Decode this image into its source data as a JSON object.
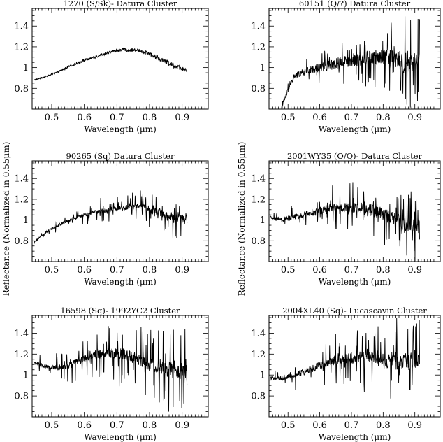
{
  "figure": {
    "ylabel": "Reflectance (Normalized in 0.55μm)"
  },
  "chart_data": [
    {
      "type": "line",
      "title": "1270 (S/Sk)- Datura Cluster",
      "xlabel": "Wavelength (μm)",
      "xlim": [
        0.44,
        0.98
      ],
      "ylim": [
        0.6,
        1.57
      ],
      "xticks": [
        "0.5",
        "0.6",
        "0.7",
        "0.8",
        "0.9"
      ],
      "yticks": [
        "0.8",
        "1",
        "1.2",
        "1.4"
      ],
      "series": [
        {
          "x": [
            0.445,
            0.48,
            0.52,
            0.56,
            0.6,
            0.64,
            0.68,
            0.72,
            0.76,
            0.8,
            0.84,
            0.88,
            0.915
          ],
          "y": [
            0.88,
            0.91,
            0.96,
            1.02,
            1.07,
            1.11,
            1.15,
            1.17,
            1.17,
            1.13,
            1.07,
            1.01,
            0.98
          ],
          "noise": 0.012,
          "spikes": 0.01,
          "floor": 0.0
        }
      ]
    },
    {
      "type": "line",
      "title": "60151 (Q/?) Datura Cluster",
      "xlabel": "Wavelength (μm)",
      "xlim": [
        0.44,
        0.98
      ],
      "ylim": [
        0.6,
        1.57
      ],
      "xticks": [
        "0.5",
        "0.6",
        "0.7",
        "0.8",
        "0.9"
      ],
      "yticks": [
        "0.8",
        "1",
        "1.2",
        "1.4"
      ],
      "series": [
        {
          "x": [
            0.48,
            0.5,
            0.52,
            0.56,
            0.6,
            0.64,
            0.68,
            0.72,
            0.76,
            0.8,
            0.84,
            0.88,
            0.915
          ],
          "y": [
            0.62,
            0.78,
            0.92,
            0.97,
            1.0,
            1.03,
            1.06,
            1.08,
            1.1,
            1.1,
            1.08,
            1.05,
            1.05
          ],
          "noise": 0.05,
          "spikes": 0.35,
          "floor": 0.6
        }
      ]
    },
    {
      "type": "line",
      "title": "90265 (Sq) Datura Cluster",
      "xlabel": "Wavelength (μm)",
      "xlim": [
        0.44,
        0.98
      ],
      "ylim": [
        0.6,
        1.57
      ],
      "xticks": [
        "0.5",
        "0.6",
        "0.7",
        "0.8",
        "0.9"
      ],
      "yticks": [
        "0.8",
        "1",
        "1.2",
        "1.4"
      ],
      "series": [
        {
          "x": [
            0.445,
            0.48,
            0.52,
            0.56,
            0.6,
            0.64,
            0.68,
            0.72,
            0.76,
            0.8,
            0.84,
            0.88,
            0.915
          ],
          "y": [
            0.78,
            0.88,
            0.95,
            1.01,
            1.05,
            1.08,
            1.1,
            1.12,
            1.13,
            1.11,
            1.06,
            1.02,
            1.0
          ],
          "noise": 0.02,
          "spikes": 0.18,
          "floor": 0.6
        }
      ]
    },
    {
      "type": "line",
      "title": "2001WY35 (O/Q)- Datura Cluster",
      "xlabel": "Wavelength (μm)",
      "xlim": [
        0.44,
        0.98
      ],
      "ylim": [
        0.6,
        1.57
      ],
      "xticks": [
        "0.5",
        "0.6",
        "0.7",
        "0.8",
        "0.9"
      ],
      "yticks": [
        "0.8",
        "1",
        "1.2",
        "1.4"
      ],
      "series": [
        {
          "x": [
            0.445,
            0.48,
            0.52,
            0.56,
            0.6,
            0.64,
            0.68,
            0.72,
            0.76,
            0.8,
            0.84,
            0.88,
            0.915
          ],
          "y": [
            1.02,
            1.0,
            1.03,
            1.06,
            1.09,
            1.12,
            1.12,
            1.12,
            1.1,
            1.06,
            1.0,
            0.95,
            0.93
          ],
          "noise": 0.04,
          "spikes": 0.3,
          "floor": 0.6
        }
      ]
    },
    {
      "type": "line",
      "title": "16598 (Sq)- 1992YC2 Cluster",
      "xlabel": "Wavelength (μm)",
      "xlim": [
        0.44,
        0.98
      ],
      "ylim": [
        0.6,
        1.57
      ],
      "xticks": [
        "0.5",
        "0.6",
        "0.7",
        "0.8",
        "0.9"
      ],
      "yticks": [
        "0.8",
        "1",
        "1.2",
        "1.4"
      ],
      "series": [
        {
          "x": [
            0.445,
            0.48,
            0.52,
            0.56,
            0.6,
            0.64,
            0.68,
            0.72,
            0.76,
            0.8,
            0.84,
            0.88,
            0.915
          ],
          "y": [
            1.12,
            1.08,
            1.07,
            1.1,
            1.16,
            1.2,
            1.21,
            1.2,
            1.16,
            1.1,
            1.06,
            1.04,
            1.04
          ],
          "noise": 0.04,
          "spikes": 0.4,
          "floor": 0.6
        }
      ]
    },
    {
      "type": "line",
      "title": "2004XL40 (Sq)- Lucascavin Cluster",
      "xlabel": "Wavelength (μm)",
      "xlim": [
        0.44,
        0.98
      ],
      "ylim": [
        0.6,
        1.57
      ],
      "xticks": [
        "0.5",
        "0.6",
        "0.7",
        "0.8",
        "0.9"
      ],
      "yticks": [
        "0.8",
        "1",
        "1.2",
        "1.4"
      ],
      "series": [
        {
          "x": [
            0.445,
            0.48,
            0.52,
            0.56,
            0.6,
            0.64,
            0.68,
            0.72,
            0.76,
            0.8,
            0.84,
            0.88,
            0.915
          ],
          "y": [
            0.97,
            0.97,
            1.0,
            1.04,
            1.09,
            1.13,
            1.15,
            1.17,
            1.17,
            1.14,
            1.12,
            1.14,
            1.13
          ],
          "noise": 0.04,
          "spikes": 0.35,
          "floor": 0.6
        }
      ]
    }
  ]
}
